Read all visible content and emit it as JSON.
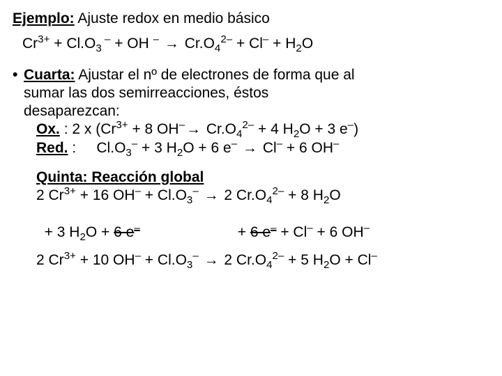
{
  "title": {
    "label": "Ejemplo:",
    "rest": " Ajuste redox en medio básico"
  },
  "main_eq": {
    "a": "Cr",
    "a_sup": "3+",
    "b_pre": " + Cl",
    "b_post": "O",
    "b_sub": "3",
    "b_sup": " –",
    "c": " + OH ",
    "c_sup": "–",
    "arrow": " → ",
    "d_pre": "Cr",
    "d_post": "O",
    "d_sub1": "4",
    "d_sup": "2–",
    "e": " + Cl",
    "e_sup": "–",
    "f": " + H",
    "f_sub": "2",
    "f_post": "O"
  },
  "cuarta": {
    "head": "Cuarta:",
    "text1": " Ajustar el nº de electrones de forma que al",
    "text2": "sumar las dos semirreacciones, éstos",
    "text3": "desaparezcan:"
  },
  "ox": {
    "label": "Ox.",
    "colon": " : ",
    "pre": " 2 x (Cr",
    "pre_sup": "3+",
    "m1": " + 8 OH",
    "m1_sup": "–",
    "arrow": "→ ",
    "p1_pre": "Cr",
    "p1_post": "O",
    "p1_sub": "4",
    "p1_sup": "2–",
    "p2": " + 4 H",
    "p2_sub": "2",
    "p2_post": "O + 3",
    "e_lab": "e",
    "e_sup": "–",
    "close": ")"
  },
  "red": {
    "label": "Red.",
    "colon": " : ",
    "sp": "    ",
    "a_pre": "Cl",
    "a_post": "O",
    "a_sub": "3",
    "a_sup": "–",
    "m1": " + 3 H",
    "m1_sub": "2",
    "m1_post": "O + 6",
    "e_lab": "e",
    "e_sup": "–",
    "arrow": " → ",
    "p1": "Cl",
    "p1_sup": "–",
    "p2": " + 6 OH",
    "p2_sup": "–"
  },
  "quinta": {
    "head": "Quinta:",
    "sub": " Reacción global"
  },
  "glob1": {
    "a": "2 Cr",
    "a_sup": "3+",
    "b": " + 16 OH",
    "b_sup": "–",
    "c_pre": " + Cl",
    "c_post": "O",
    "c_sub": "3",
    "c_sup": "–",
    "arrow": " →  ",
    "d_pre": "2 Cr",
    "d_post": "O",
    "d_sub": "4",
    "d_sup": "2–",
    "e": " + 8 H",
    "e_sub": "2",
    "e_post": "O"
  },
  "glob2": {
    "a": "+ 3 H",
    "a_sub": "2",
    "a_post": "O + ",
    "strike1": "6 e",
    "strike1_sup": "–",
    "gap": "                        ",
    "b": "+ ",
    "strike2": "6 e",
    "strike2_sup": "–",
    "c": " + Cl",
    "c_sup": "–",
    "d": " + 6",
    "d2": "OH",
    "d_sup": "–"
  },
  "final": {
    "a": "2 Cr",
    "a_sup": "3+",
    "b": " + 10 OH",
    "b_sup": "–",
    "c_pre": " + Cl",
    "c_post": "O",
    "c_sub": "3",
    "c_sup": "–",
    "arrow": " →  ",
    "d_pre": "2 Cr",
    "d_post": "O",
    "d_sub": "4",
    "d_sup": "2–",
    "e": " + 5 H",
    "e_sub": "2",
    "e_post": "O + Cl",
    "e_sup": "–"
  }
}
